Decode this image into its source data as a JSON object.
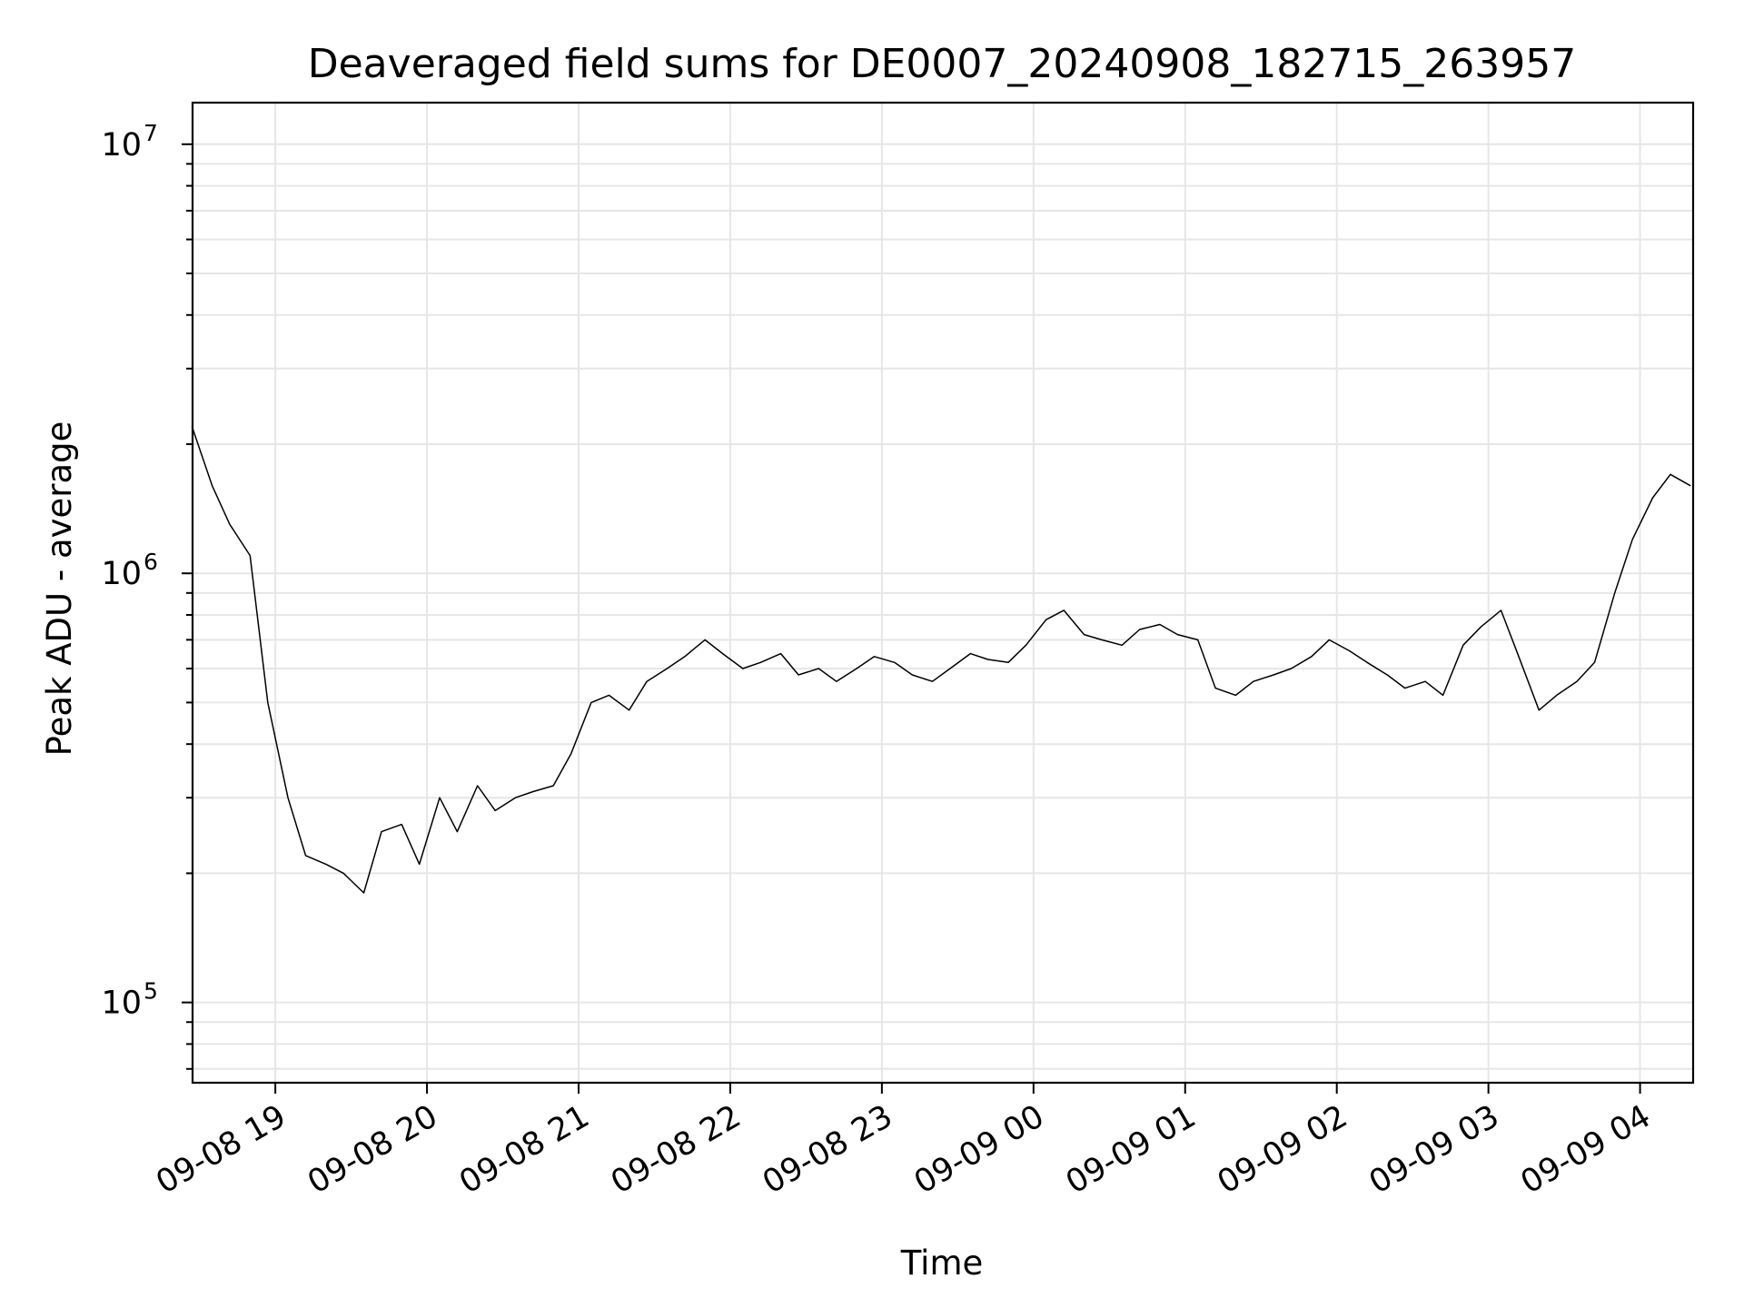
{
  "chart_data": {
    "type": "line",
    "title": "Deaveraged field sums for DE0007_20240908_182715_263957",
    "xlabel": "Time",
    "ylabel": "Peak ADU - average",
    "x_range": [
      "2024-09-08 18:27:15",
      "2024-09-09 04:21:00"
    ],
    "y_scale": "log",
    "ylim": [
      65000,
      12500000
    ],
    "y_ticks": [
      {
        "value": 100000,
        "base": "10",
        "exp": "5"
      },
      {
        "value": 1000000,
        "base": "10",
        "exp": "6"
      },
      {
        "value": 10000000,
        "base": "10",
        "exp": "7"
      }
    ],
    "x_ticks": [
      {
        "value": "2024-09-08 19:00",
        "label": "09-08 19"
      },
      {
        "value": "2024-09-08 20:00",
        "label": "09-08 20"
      },
      {
        "value": "2024-09-08 21:00",
        "label": "09-08 21"
      },
      {
        "value": "2024-09-08 22:00",
        "label": "09-08 22"
      },
      {
        "value": "2024-09-08 23:00",
        "label": "09-08 23"
      },
      {
        "value": "2024-09-09 00:00",
        "label": "09-09 00"
      },
      {
        "value": "2024-09-09 01:00",
        "label": "09-09 01"
      },
      {
        "value": "2024-09-09 02:00",
        "label": "09-09 02"
      },
      {
        "value": "2024-09-09 03:00",
        "label": "09-09 03"
      },
      {
        "value": "2024-09-09 04:00",
        "label": "09-09 04"
      }
    ],
    "grid": true,
    "line_color": "#000000",
    "grid_color": "#e6e6e6",
    "series": [
      {
        "x": [
          "2024-09-08 18:27",
          "2024-09-08 18:35",
          "2024-09-08 18:42",
          "2024-09-08 18:50",
          "2024-09-08 18:57",
          "2024-09-08 19:05",
          "2024-09-08 19:12",
          "2024-09-08 19:20",
          "2024-09-08 19:27",
          "2024-09-08 19:35",
          "2024-09-08 19:42",
          "2024-09-08 19:50",
          "2024-09-08 19:57",
          "2024-09-08 20:05",
          "2024-09-08 20:12",
          "2024-09-08 20:20",
          "2024-09-08 20:27",
          "2024-09-08 20:35",
          "2024-09-08 20:42",
          "2024-09-08 20:50",
          "2024-09-08 20:57",
          "2024-09-08 21:05",
          "2024-09-08 21:12",
          "2024-09-08 21:20",
          "2024-09-08 21:27",
          "2024-09-08 21:35",
          "2024-09-08 21:42",
          "2024-09-08 21:50",
          "2024-09-08 21:57",
          "2024-09-08 22:05",
          "2024-09-08 22:12",
          "2024-09-08 22:20",
          "2024-09-08 22:27",
          "2024-09-08 22:35",
          "2024-09-08 22:42",
          "2024-09-08 22:50",
          "2024-09-08 22:57",
          "2024-09-08 23:05",
          "2024-09-08 23:12",
          "2024-09-08 23:20",
          "2024-09-08 23:27",
          "2024-09-08 23:35",
          "2024-09-08 23:42",
          "2024-09-08 23:50",
          "2024-09-08 23:57",
          "2024-09-09 00:05",
          "2024-09-09 00:12",
          "2024-09-09 00:20",
          "2024-09-09 00:27",
          "2024-09-09 00:35",
          "2024-09-09 00:42",
          "2024-09-09 00:50",
          "2024-09-09 00:57",
          "2024-09-09 01:05",
          "2024-09-09 01:12",
          "2024-09-09 01:20",
          "2024-09-09 01:27",
          "2024-09-09 01:35",
          "2024-09-09 01:42",
          "2024-09-09 01:50",
          "2024-09-09 01:57",
          "2024-09-09 02:05",
          "2024-09-09 02:12",
          "2024-09-09 02:20",
          "2024-09-09 02:27",
          "2024-09-09 02:35",
          "2024-09-09 02:42",
          "2024-09-09 02:50",
          "2024-09-09 02:57",
          "2024-09-09 03:05",
          "2024-09-09 03:12",
          "2024-09-09 03:20",
          "2024-09-09 03:27",
          "2024-09-09 03:35",
          "2024-09-09 03:42",
          "2024-09-09 03:50",
          "2024-09-09 03:57",
          "2024-09-09 04:05",
          "2024-09-09 04:12",
          "2024-09-09 04:20"
        ],
        "y": [
          2200000,
          1600000,
          1300000,
          1100000,
          500000,
          300000,
          220000,
          210000,
          200000,
          180000,
          250000,
          260000,
          210000,
          300000,
          250000,
          320000,
          280000,
          300000,
          310000,
          320000,
          380000,
          500000,
          520000,
          480000,
          560000,
          600000,
          640000,
          700000,
          650000,
          600000,
          620000,
          650000,
          580000,
          600000,
          560000,
          600000,
          640000,
          620000,
          580000,
          560000,
          600000,
          650000,
          630000,
          620000,
          680000,
          780000,
          820000,
          720000,
          700000,
          680000,
          740000,
          760000,
          720000,
          700000,
          540000,
          520000,
          560000,
          580000,
          600000,
          640000,
          700000,
          660000,
          620000,
          580000,
          540000,
          560000,
          520000,
          680000,
          750000,
          820000,
          640000,
          480000,
          520000,
          560000,
          620000,
          900000,
          1200000,
          1500000,
          1700000,
          1600000
        ]
      }
    ]
  }
}
